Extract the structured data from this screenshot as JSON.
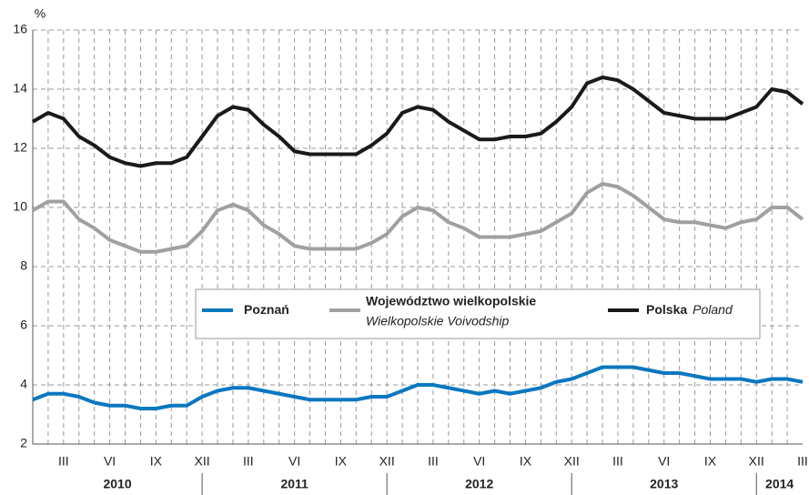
{
  "chart_data": {
    "type": "line",
    "y_label": "%",
    "ylim": [
      2,
      16
    ],
    "yticks": [
      2,
      4,
      6,
      8,
      10,
      12,
      14,
      16
    ],
    "grid": true,
    "categories": [
      null,
      null,
      "III",
      null,
      null,
      "VI",
      null,
      null,
      "IX",
      null,
      null,
      "XII",
      null,
      null,
      "III",
      null,
      null,
      "VI",
      null,
      null,
      "IX",
      null,
      null,
      "XII",
      null,
      null,
      "III",
      null,
      null,
      "VI",
      null,
      null,
      "IX",
      null,
      null,
      "XII",
      null,
      null,
      "III",
      null,
      null,
      "VI",
      null,
      null,
      "IX",
      null,
      null,
      "XII",
      null,
      null,
      "III"
    ],
    "years": [
      "2010",
      "2011",
      "2012",
      "2013",
      "2014"
    ],
    "series": [
      {
        "name": "Poznań",
        "color": "#0a77c0",
        "values": [
          3.5,
          3.7,
          3.7,
          3.6,
          3.4,
          3.3,
          3.3,
          3.2,
          3.2,
          3.3,
          3.3,
          3.6,
          3.8,
          3.9,
          3.9,
          3.8,
          3.7,
          3.6,
          3.5,
          3.5,
          3.5,
          3.5,
          3.6,
          3.6,
          3.8,
          4.0,
          4.0,
          3.9,
          3.8,
          3.7,
          3.8,
          3.7,
          3.8,
          3.9,
          4.1,
          4.2,
          4.4,
          4.6,
          4.6,
          4.6,
          4.5,
          4.4,
          4.4,
          4.3,
          4.2,
          4.2,
          4.2,
          4.1,
          4.2,
          4.2,
          4.1
        ]
      },
      {
        "name": "Województwo wielkopolskie",
        "name_en": "Wielkopolskie Voivodship",
        "color": "#a0a0a0",
        "values": [
          9.9,
          10.2,
          10.2,
          9.6,
          9.3,
          8.9,
          8.7,
          8.5,
          8.5,
          8.6,
          8.7,
          9.2,
          9.9,
          10.1,
          9.9,
          9.4,
          9.1,
          8.7,
          8.6,
          8.6,
          8.6,
          8.6,
          8.8,
          9.1,
          9.7,
          10.0,
          9.9,
          9.5,
          9.3,
          9.0,
          9.0,
          9.0,
          9.1,
          9.2,
          9.5,
          9.8,
          10.5,
          10.8,
          10.7,
          10.4,
          10.0,
          9.6,
          9.5,
          9.5,
          9.4,
          9.3,
          9.5,
          9.6,
          10.0,
          10.0,
          9.6
        ]
      },
      {
        "name": "Polska",
        "name_en": "Poland",
        "color": "#1a1a1a",
        "values": [
          12.9,
          13.2,
          13.0,
          12.4,
          12.1,
          11.7,
          11.5,
          11.4,
          11.5,
          11.5,
          11.7,
          12.4,
          13.1,
          13.4,
          13.3,
          12.8,
          12.4,
          11.9,
          11.8,
          11.8,
          11.8,
          11.8,
          12.1,
          12.5,
          13.2,
          13.4,
          13.3,
          12.9,
          12.6,
          12.3,
          12.3,
          12.4,
          12.4,
          12.5,
          12.9,
          13.4,
          14.2,
          14.4,
          14.3,
          14.0,
          13.6,
          13.2,
          13.1,
          13.0,
          13.0,
          13.0,
          13.2,
          13.4,
          14.0,
          13.9,
          13.5
        ]
      }
    ]
  }
}
